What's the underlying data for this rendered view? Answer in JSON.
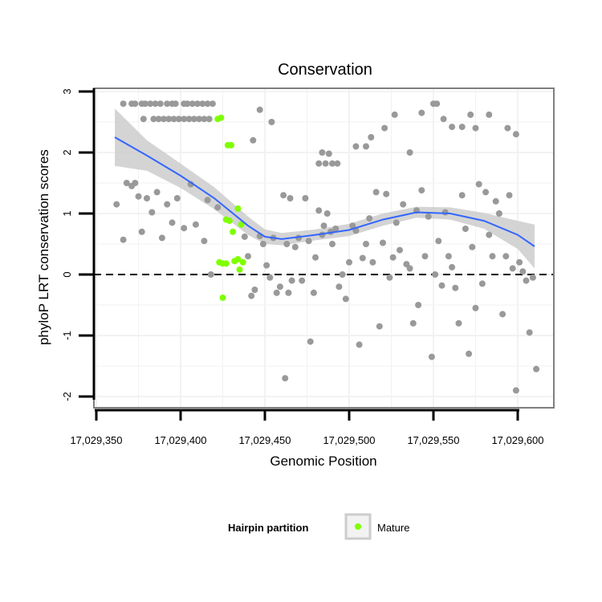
{
  "chart_data": {
    "type": "scatter",
    "title": "Conservation",
    "xlabel": "Genomic Position",
    "ylabel": "phyloP LRT conservation scores",
    "xlim": [
      17029355,
      17029620
    ],
    "ylim": [
      -2.15,
      3.0
    ],
    "x_ticks": [
      17029350,
      17029400,
      17029450,
      17029500,
      17029550,
      17029600
    ],
    "x_tick_labels": [
      "17,029,350",
      "17,029,400",
      "17,029,450",
      "17,029,500",
      "17,029,550",
      "17,029,600"
    ],
    "y_ticks": [
      -2,
      -1,
      0,
      1,
      2,
      3
    ],
    "y_tick_labels": [
      "-2",
      "-1",
      "0",
      "1",
      "2",
      "3"
    ],
    "reference_line": {
      "y": 0,
      "style": "dashed",
      "color": "#000000"
    },
    "grid": true,
    "legend": {
      "position": "bottom",
      "title": "Hairpin partition",
      "entries": [
        {
          "label": "Mature",
          "color": "#7fff00"
        }
      ]
    },
    "colors": {
      "points": "#999999",
      "mature": "#7fff00",
      "smooth_line": "#3366ff",
      "confidence_band": "#cccccc",
      "panel_border": "#7f7f7f",
      "gridline": "#f2f2f2"
    },
    "series": [
      {
        "values": [
          [
            17029366,
            2.8
          ],
          [
            17029371,
            2.8
          ],
          [
            17029373,
            2.8
          ],
          [
            17029377,
            2.8
          ],
          [
            17029379,
            2.8
          ],
          [
            17029382,
            2.8
          ],
          [
            17029385,
            2.8
          ],
          [
            17029388,
            2.8
          ],
          [
            17029392,
            2.8
          ],
          [
            17029395,
            2.8
          ],
          [
            17029397,
            2.8
          ],
          [
            17029402,
            2.8
          ],
          [
            17029404,
            2.8
          ],
          [
            17029407,
            2.8
          ],
          [
            17029410,
            2.8
          ],
          [
            17029413,
            2.8
          ],
          [
            17029416,
            2.8
          ],
          [
            17029419,
            2.8
          ],
          [
            17029378,
            2.55
          ],
          [
            17029384,
            2.55
          ],
          [
            17029387,
            2.55
          ],
          [
            17029390,
            2.55
          ],
          [
            17029393,
            2.55
          ],
          [
            17029396,
            2.55
          ],
          [
            17029399,
            2.55
          ],
          [
            17029402,
            2.55
          ],
          [
            17029405,
            2.55
          ],
          [
            17029408,
            2.55
          ],
          [
            17029411,
            2.55
          ],
          [
            17029414,
            2.55
          ],
          [
            17029417,
            2.55
          ],
          [
            17029447,
            2.7
          ],
          [
            17029454,
            2.5
          ],
          [
            17029443,
            2.2
          ],
          [
            17029513,
            2.25
          ],
          [
            17029521,
            2.4
          ],
          [
            17029527,
            2.62
          ],
          [
            17029536,
            2.0
          ],
          [
            17029543,
            2.65
          ],
          [
            17029550,
            2.8
          ],
          [
            17029552,
            2.8
          ],
          [
            17029556,
            2.55
          ],
          [
            17029561,
            2.42
          ],
          [
            17029567,
            2.42
          ],
          [
            17029572,
            2.62
          ],
          [
            17029575,
            2.4
          ],
          [
            17029583,
            2.62
          ],
          [
            17029594,
            2.4
          ],
          [
            17029599,
            2.3
          ],
          [
            17029482,
            1.82
          ],
          [
            17029484,
            2.0
          ],
          [
            17029486,
            1.82
          ],
          [
            17029488,
            1.98
          ],
          [
            17029490,
            1.82
          ],
          [
            17029493,
            1.82
          ],
          [
            17029504,
            2.1
          ],
          [
            17029510,
            2.1
          ],
          [
            17029362,
            1.15
          ],
          [
            17029366,
            0.57
          ],
          [
            17029368,
            1.5
          ],
          [
            17029371,
            1.45
          ],
          [
            17029373,
            1.5
          ],
          [
            17029375,
            1.28
          ],
          [
            17029377,
            0.7
          ],
          [
            17029380,
            1.25
          ],
          [
            17029383,
            1.02
          ],
          [
            17029386,
            1.35
          ],
          [
            17029389,
            0.6
          ],
          [
            17029392,
            1.15
          ],
          [
            17029395,
            0.85
          ],
          [
            17029398,
            1.25
          ],
          [
            17029402,
            0.76
          ],
          [
            17029406,
            1.48
          ],
          [
            17029409,
            0.82
          ],
          [
            17029414,
            0.55
          ],
          [
            17029416,
            1.22
          ],
          [
            17029418,
            0.0
          ],
          [
            17029422,
            1.1
          ],
          [
            17029438,
            0.62
          ],
          [
            17029440,
            0.3
          ],
          [
            17029442,
            -0.35
          ],
          [
            17029444,
            -0.25
          ],
          [
            17029447,
            0.63
          ],
          [
            17029449,
            0.5
          ],
          [
            17029451,
            0.15
          ],
          [
            17029453,
            -0.05
          ],
          [
            17029455,
            0.6
          ],
          [
            17029457,
            -0.3
          ],
          [
            17029459,
            -0.2
          ],
          [
            17029461,
            1.3
          ],
          [
            17029462,
            -1.7
          ],
          [
            17029463,
            0.5
          ],
          [
            17029464,
            -0.3
          ],
          [
            17029465,
            1.25
          ],
          [
            17029466,
            -0.1
          ],
          [
            17029468,
            0.45
          ],
          [
            17029470,
            0.6
          ],
          [
            17029472,
            -0.1
          ],
          [
            17029474,
            1.25
          ],
          [
            17029476,
            0.55
          ],
          [
            17029477,
            -1.1
          ],
          [
            17029479,
            -0.3
          ],
          [
            17029480,
            0.28
          ],
          [
            17029482,
            1.05
          ],
          [
            17029484,
            0.65
          ],
          [
            17029485,
            0.8
          ],
          [
            17029487,
            1.0
          ],
          [
            17029489,
            0.7
          ],
          [
            17029490,
            0.5
          ],
          [
            17029492,
            0.75
          ],
          [
            17029494,
            -0.2
          ],
          [
            17029496,
            0.0
          ],
          [
            17029498,
            -0.4
          ],
          [
            17029500,
            0.2
          ],
          [
            17029502,
            0.8
          ],
          [
            17029504,
            0.72
          ],
          [
            17029506,
            -1.15
          ],
          [
            17029508,
            0.27
          ],
          [
            17029510,
            0.5
          ],
          [
            17029512,
            0.92
          ],
          [
            17029514,
            0.2
          ],
          [
            17029516,
            1.35
          ],
          [
            17029518,
            -0.85
          ],
          [
            17029520,
            0.52
          ],
          [
            17029522,
            1.32
          ],
          [
            17029524,
            -0.05
          ],
          [
            17029526,
            0.28
          ],
          [
            17029528,
            0.85
          ],
          [
            17029530,
            0.4
          ],
          [
            17029532,
            1.15
          ],
          [
            17029534,
            0.17
          ],
          [
            17029536,
            0.1
          ],
          [
            17029538,
            -0.8
          ],
          [
            17029540,
            1.05
          ],
          [
            17029541,
            -0.5
          ],
          [
            17029543,
            1.38
          ],
          [
            17029545,
            0.3
          ],
          [
            17029547,
            0.95
          ],
          [
            17029549,
            -1.35
          ],
          [
            17029551,
            0.0
          ],
          [
            17029553,
            0.55
          ],
          [
            17029555,
            -0.18
          ],
          [
            17029557,
            1.02
          ],
          [
            17029559,
            0.3
          ],
          [
            17029561,
            0.12
          ],
          [
            17029563,
            -0.22
          ],
          [
            17029565,
            -0.8
          ],
          [
            17029567,
            1.3
          ],
          [
            17029569,
            0.75
          ],
          [
            17029571,
            -1.3
          ],
          [
            17029573,
            0.45
          ],
          [
            17029575,
            -0.55
          ],
          [
            17029577,
            1.48
          ],
          [
            17029579,
            -0.15
          ],
          [
            17029581,
            1.35
          ],
          [
            17029583,
            0.65
          ],
          [
            17029585,
            0.3
          ],
          [
            17029587,
            1.2
          ],
          [
            17029589,
            1.0
          ],
          [
            17029591,
            -0.65
          ],
          [
            17029593,
            0.3
          ],
          [
            17029595,
            1.3
          ],
          [
            17029597,
            0.1
          ],
          [
            17029599,
            -1.9
          ],
          [
            17029601,
            0.2
          ],
          [
            17029603,
            0.05
          ],
          [
            17029605,
            -0.1
          ],
          [
            17029607,
            -0.95
          ],
          [
            17029609,
            -0.05
          ],
          [
            17029611,
            -1.55
          ]
        ]
      },
      {
        "name": "Mature",
        "values": [
          [
            17029422,
            2.55
          ],
          [
            17029424,
            2.57
          ],
          [
            17029428,
            2.12
          ],
          [
            17029430,
            2.12
          ],
          [
            17029427,
            0.9
          ],
          [
            17029429,
            0.88
          ],
          [
            17029431,
            0.7
          ],
          [
            17029434,
            1.08
          ],
          [
            17029436,
            0.82
          ],
          [
            17029423,
            0.2
          ],
          [
            17029425,
            0.18
          ],
          [
            17029427,
            0.18
          ],
          [
            17029432,
            0.22
          ],
          [
            17029434,
            0.25
          ],
          [
            17029437,
            0.2
          ],
          [
            17029435,
            0.08
          ],
          [
            17029425,
            -0.38
          ]
        ]
      }
    ],
    "smooth_fit": {
      "x": [
        17029361,
        17029380,
        17029400,
        17029420,
        17029440,
        17029450,
        17029460,
        17029480,
        17029500,
        17029520,
        17029540,
        17029560,
        17029580,
        17029600,
        17029610
      ],
      "y": [
        2.25,
        1.95,
        1.62,
        1.25,
        0.8,
        0.62,
        0.58,
        0.65,
        0.73,
        0.9,
        1.02,
        1.0,
        0.88,
        0.65,
        0.46
      ],
      "lower": [
        1.78,
        1.7,
        1.42,
        1.07,
        0.65,
        0.5,
        0.48,
        0.56,
        0.63,
        0.8,
        0.93,
        0.9,
        0.75,
        0.42,
        0.1
      ],
      "upper": [
        2.72,
        2.2,
        1.82,
        1.43,
        0.95,
        0.74,
        0.68,
        0.74,
        0.83,
        1.0,
        1.11,
        1.1,
        1.01,
        0.88,
        0.82
      ]
    }
  }
}
